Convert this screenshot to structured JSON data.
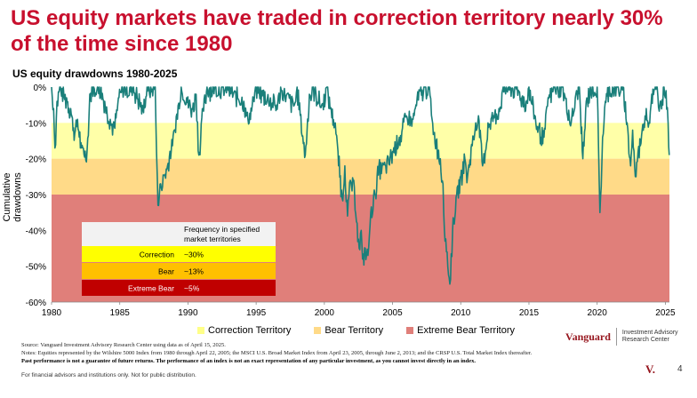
{
  "title": "US equity markets have traded in correction territory nearly 30% of the time since 1980",
  "chart_data": {
    "type": "area",
    "title": "US equity drawdowns 1980-2025",
    "ylabel": "Cumulative drawdowns",
    "xlabel": "",
    "xlim": [
      1980,
      2025.3
    ],
    "ylim": [
      -60,
      0
    ],
    "x_ticks": [
      "1980",
      "1985",
      "1990",
      "1995",
      "2000",
      "2005",
      "2010",
      "2015",
      "2020",
      "2025"
    ],
    "y_ticks": [
      "0%",
      "-10%",
      "-20%",
      "-30%",
      "-40%",
      "-50%",
      "-60%"
    ],
    "bands": [
      {
        "name": "Correction Territory",
        "from": -10,
        "to": -20,
        "color": "#FFFFA8"
      },
      {
        "name": "Bear Territory",
        "from": -20,
        "to": -30,
        "color": "#FFDA88"
      },
      {
        "name": "Extreme Bear Territory",
        "from": -30,
        "to": -60,
        "color": "#E07F7A"
      }
    ],
    "series": [
      {
        "color": "#1A7F7A",
        "points": [
          [
            1980.0,
            0
          ],
          [
            1980.15,
            -6
          ],
          [
            1980.25,
            -17
          ],
          [
            1980.4,
            -4
          ],
          [
            1980.6,
            0
          ],
          [
            1980.9,
            -2
          ],
          [
            1981.1,
            -3
          ],
          [
            1981.4,
            -6
          ],
          [
            1981.7,
            -13
          ],
          [
            1981.9,
            -9
          ],
          [
            1982.2,
            -17
          ],
          [
            1982.6,
            -18
          ],
          [
            1982.8,
            -2
          ],
          [
            1983.0,
            0
          ],
          [
            1983.5,
            0
          ],
          [
            1983.9,
            -4
          ],
          [
            1984.3,
            -9
          ],
          [
            1984.6,
            -11
          ],
          [
            1984.9,
            -3
          ],
          [
            1985.2,
            0
          ],
          [
            1986.0,
            0
          ],
          [
            1986.7,
            -6
          ],
          [
            1987.0,
            0
          ],
          [
            1987.6,
            0
          ],
          [
            1987.8,
            -33
          ],
          [
            1988.0,
            -27
          ],
          [
            1988.5,
            -22
          ],
          [
            1989.0,
            -12
          ],
          [
            1989.5,
            0
          ],
          [
            1989.9,
            -3
          ],
          [
            1990.3,
            -6
          ],
          [
            1990.6,
            -2
          ],
          [
            1990.8,
            -19
          ],
          [
            1991.1,
            -6
          ],
          [
            1991.4,
            0
          ],
          [
            1992.0,
            0
          ],
          [
            1993.0,
            0
          ],
          [
            1994.1,
            -4
          ],
          [
            1994.4,
            -9
          ],
          [
            1994.8,
            -3
          ],
          [
            1995.0,
            0
          ],
          [
            1996.5,
            -5
          ],
          [
            1996.8,
            0
          ],
          [
            1997.8,
            -5
          ],
          [
            1998.0,
            0
          ],
          [
            1998.6,
            -19
          ],
          [
            1998.9,
            -2
          ],
          [
            1999.2,
            0
          ],
          [
            1999.8,
            -5
          ],
          [
            2000.2,
            0
          ],
          [
            2000.5,
            -6
          ],
          [
            2000.8,
            -10
          ],
          [
            2001.0,
            -18
          ],
          [
            2001.3,
            -31
          ],
          [
            2001.5,
            -22
          ],
          [
            2001.7,
            -36
          ],
          [
            2001.9,
            -26
          ],
          [
            2002.2,
            -28
          ],
          [
            2002.4,
            -38
          ],
          [
            2002.55,
            -45
          ],
          [
            2002.7,
            -40
          ],
          [
            2002.8,
            -48
          ],
          [
            2003.0,
            -45
          ],
          [
            2003.2,
            -47
          ],
          [
            2003.4,
            -35
          ],
          [
            2003.7,
            -30
          ],
          [
            2004.0,
            -22
          ],
          [
            2004.5,
            -22
          ],
          [
            2005.0,
            -18
          ],
          [
            2005.5,
            -14
          ],
          [
            2006.0,
            -8
          ],
          [
            2006.5,
            -9
          ],
          [
            2006.8,
            -3
          ],
          [
            2007.3,
            0
          ],
          [
            2007.7,
            0
          ],
          [
            2007.9,
            -9
          ],
          [
            2008.2,
            -15
          ],
          [
            2008.5,
            -20
          ],
          [
            2008.7,
            -27
          ],
          [
            2008.85,
            -43
          ],
          [
            2009.0,
            -46
          ],
          [
            2009.2,
            -55
          ],
          [
            2009.4,
            -40
          ],
          [
            2009.7,
            -30
          ],
          [
            2010.0,
            -25
          ],
          [
            2010.3,
            -20
          ],
          [
            2010.5,
            -25
          ],
          [
            2010.8,
            -16
          ],
          [
            2011.1,
            -10
          ],
          [
            2011.3,
            -8
          ],
          [
            2011.6,
            -22
          ],
          [
            2011.8,
            -18
          ],
          [
            2012.0,
            -10
          ],
          [
            2012.4,
            -8
          ],
          [
            2012.8,
            -6
          ],
          [
            2013.2,
            0
          ],
          [
            2014.0,
            0
          ],
          [
            2014.8,
            -4
          ],
          [
            2015.0,
            0
          ],
          [
            2015.6,
            -11
          ],
          [
            2016.1,
            -14
          ],
          [
            2016.4,
            -3
          ],
          [
            2016.8,
            0
          ],
          [
            2017.5,
            0
          ],
          [
            2018.1,
            -10
          ],
          [
            2018.4,
            -3
          ],
          [
            2018.7,
            0
          ],
          [
            2018.95,
            -20
          ],
          [
            2019.2,
            -4
          ],
          [
            2019.5,
            0
          ],
          [
            2020.0,
            0
          ],
          [
            2020.2,
            -35
          ],
          [
            2020.4,
            -14
          ],
          [
            2020.6,
            -4
          ],
          [
            2020.9,
            0
          ],
          [
            2021.5,
            0
          ],
          [
            2021.9,
            0
          ],
          [
            2022.2,
            -10
          ],
          [
            2022.45,
            -22
          ],
          [
            2022.6,
            -12
          ],
          [
            2022.8,
            -25
          ],
          [
            2023.0,
            -18
          ],
          [
            2023.3,
            -12
          ],
          [
            2023.6,
            -6
          ],
          [
            2023.8,
            -10
          ],
          [
            2024.0,
            -2
          ],
          [
            2024.4,
            0
          ],
          [
            2024.6,
            -5
          ],
          [
            2024.9,
            0
          ],
          [
            2025.05,
            -1
          ],
          [
            2025.2,
            -10
          ],
          [
            2025.29,
            -19
          ]
        ]
      }
    ],
    "inset_table": {
      "header": "Frequency in specified market territories",
      "rows": [
        {
          "label": "Correction",
          "value": "~30%",
          "color": "#FFFF00"
        },
        {
          "label": "Bear",
          "value": "~13%",
          "color": "#FFC000"
        },
        {
          "label": "Extreme Bear",
          "value": "~5%",
          "color": "#C00000"
        }
      ]
    },
    "legend_position": "bottom"
  },
  "legend": {
    "items": [
      {
        "label": "Correction Territory",
        "color": "#FFFF88"
      },
      {
        "label": "Bear Territory",
        "color": "#FFDA88"
      },
      {
        "label": "Extreme Bear Territory",
        "color": "#E07F7A"
      }
    ]
  },
  "brand": {
    "name": "Vanguard",
    "sub": "Investment Advisory Research Center"
  },
  "notes": {
    "source": "Source: Vanguard Investment Advisory Research Center using data as of April 15, 2025.",
    "equities": "Notes: Equities represented by the Wilshire 5000 Index from 1980 through April 22, 2005; the MSCI U.S. Broad Market Index from April 23, 2005, through June 2, 2013; and the CRSP U.S. Total Market Index thereafter.",
    "disclaimer": "Past performance is not a guarantee of future returns. The performance of an index is not an exact representation of any particular investment, as you cannot invest directly in an index."
  },
  "footer": "For financial advisors and institutions only. Not for public distribution.",
  "v_logo": "V.",
  "page_number": "4"
}
